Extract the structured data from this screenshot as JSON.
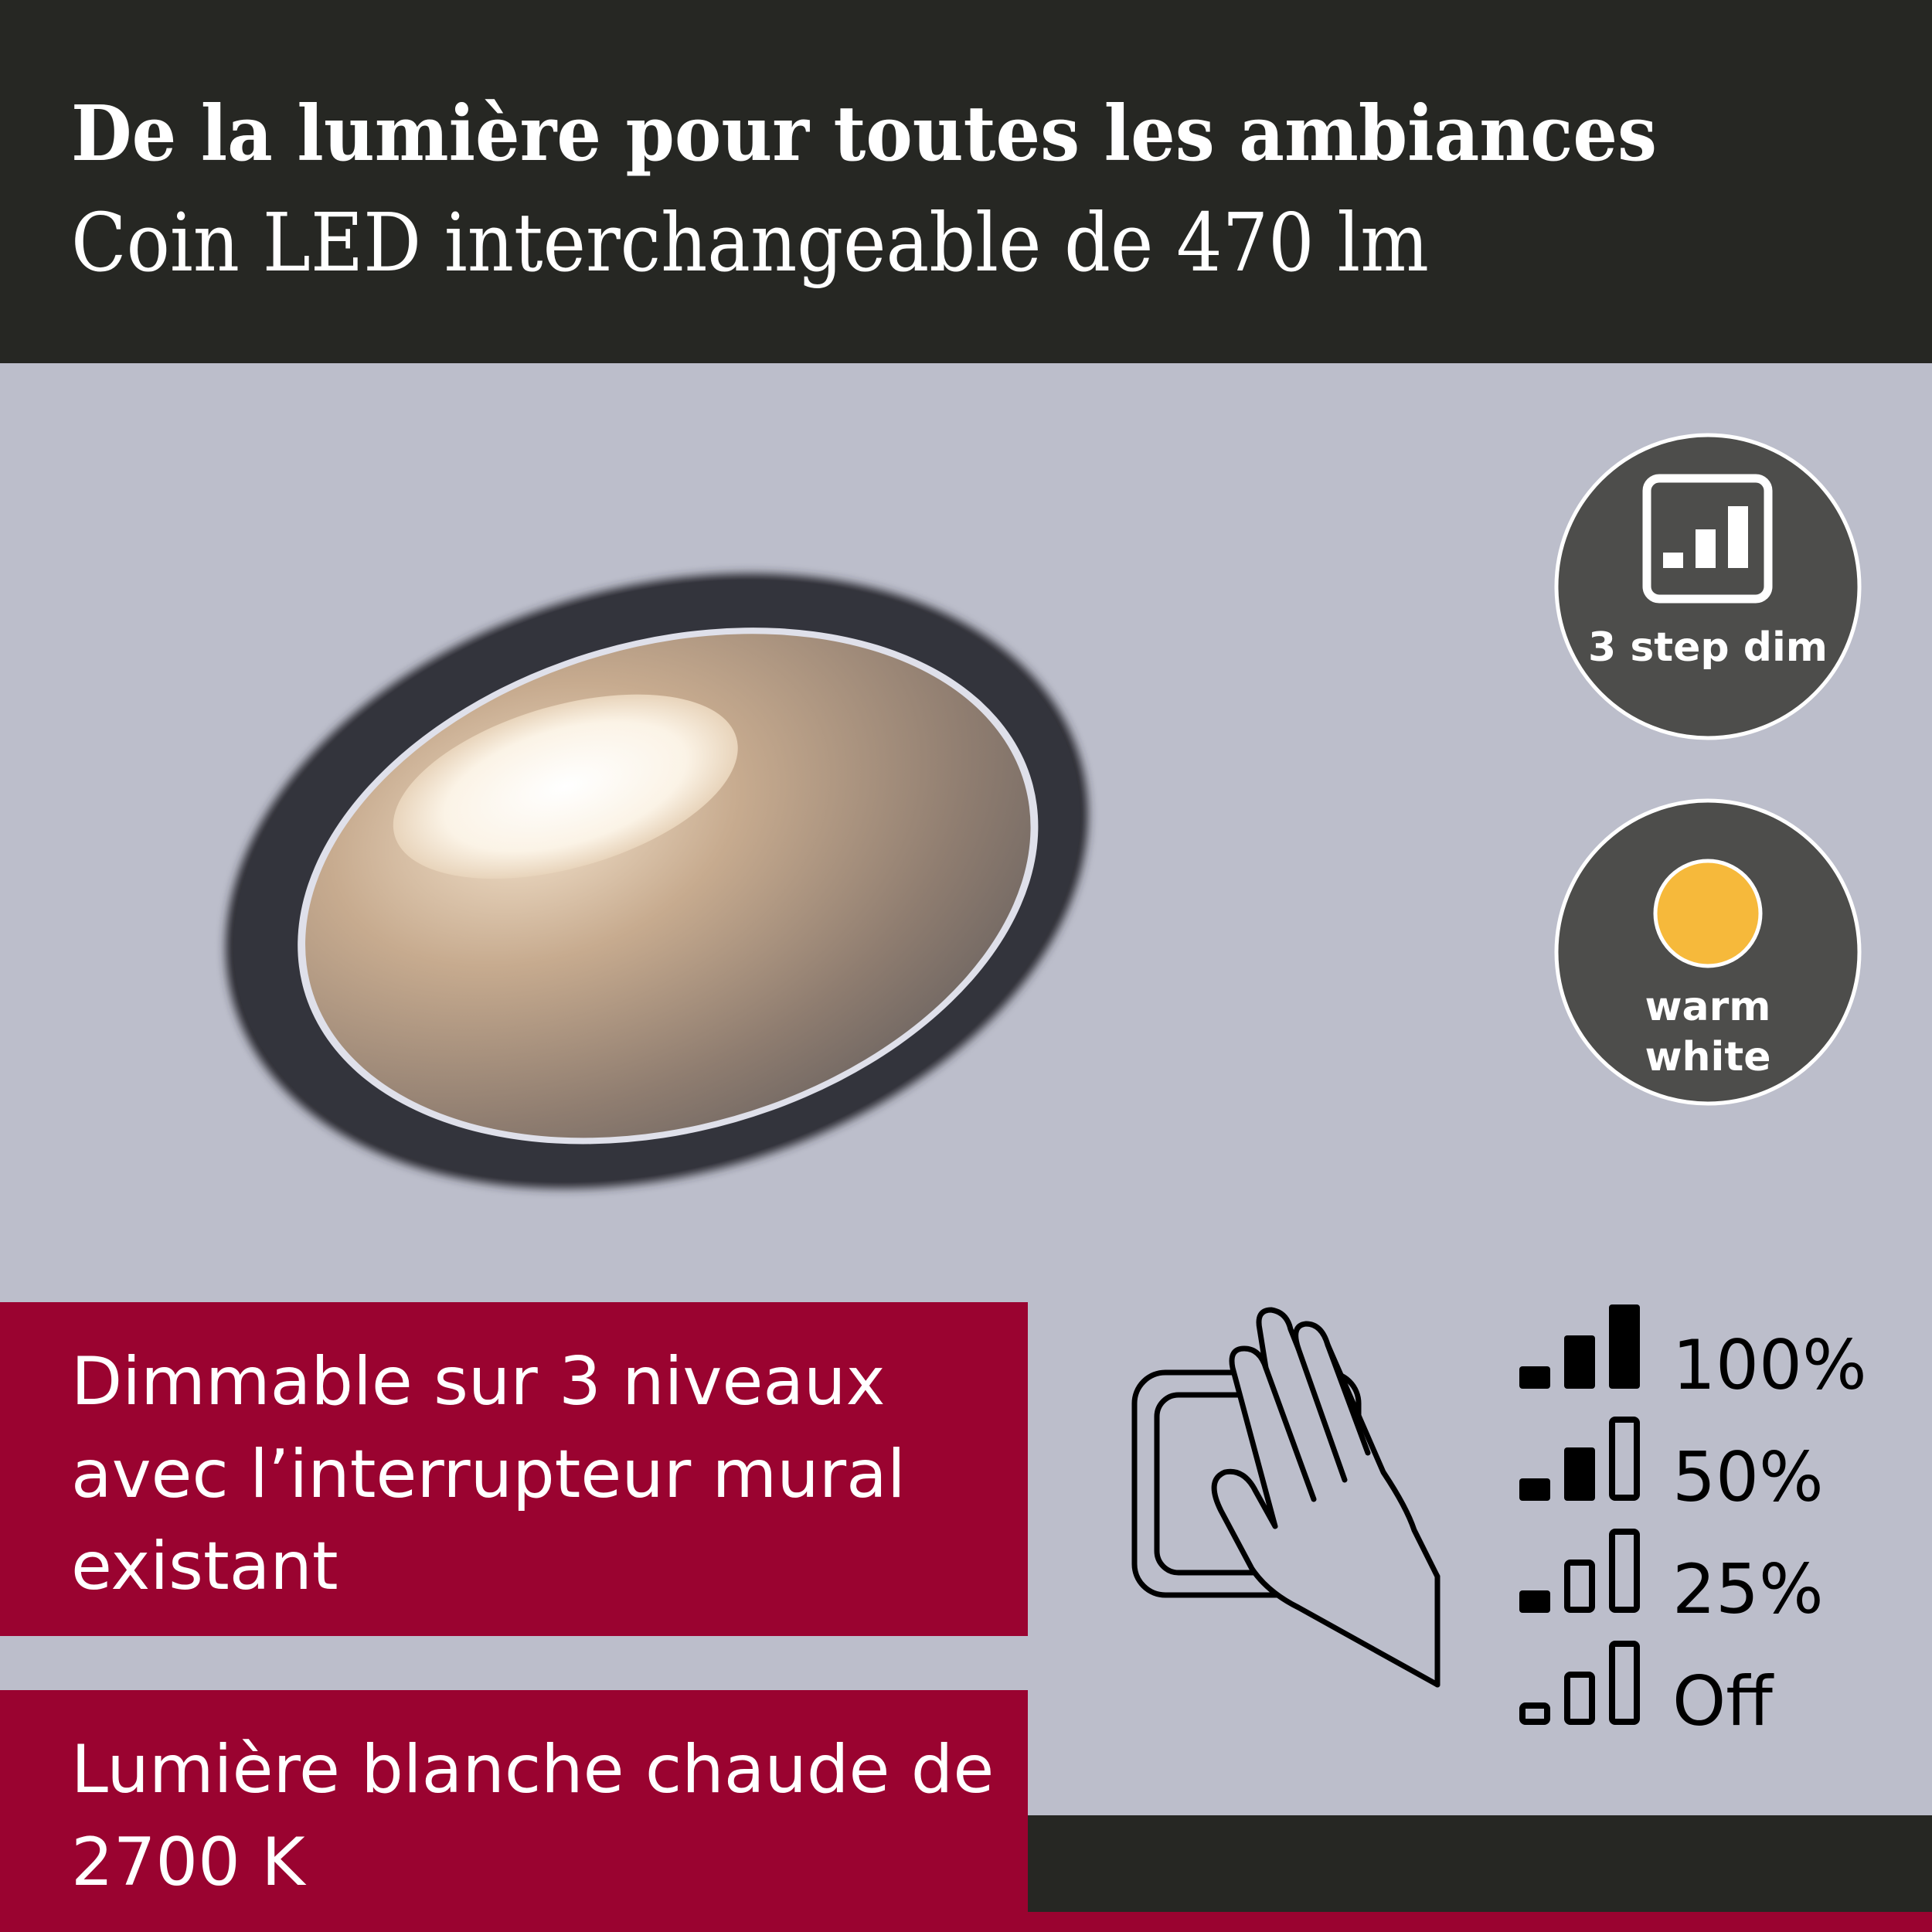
{
  "header": {
    "title": "De la lumière pour toutes les ambiances",
    "subtitle": "Coin LED interchangeable de 470 lm"
  },
  "badges": [
    {
      "icon": "dim-steps-icon",
      "label": "3 step dim"
    },
    {
      "icon": "warm-white-sun-icon",
      "label_lines": [
        "warm",
        "white"
      ],
      "color": "#f6b93b"
    }
  ],
  "features": [
    {
      "lines": [
        "Dimmable sur 3 niveaux",
        "avec l’interrupteur mural",
        "existant"
      ]
    },
    {
      "lines": [
        "Lumière blanche chaude de",
        "2700 K"
      ]
    }
  ],
  "dim_levels": [
    {
      "label": "100%",
      "filled_bars": 3
    },
    {
      "label": "50%",
      "filled_bars": 2
    },
    {
      "label": "25%",
      "filled_bars": 1
    },
    {
      "label": "Off",
      "filled_bars": 0
    }
  ],
  "colors": {
    "header_bg": "#262723",
    "accent_red": "#9a0330",
    "background": "#bcbecb",
    "badge_bg": "#4d4d4b"
  }
}
